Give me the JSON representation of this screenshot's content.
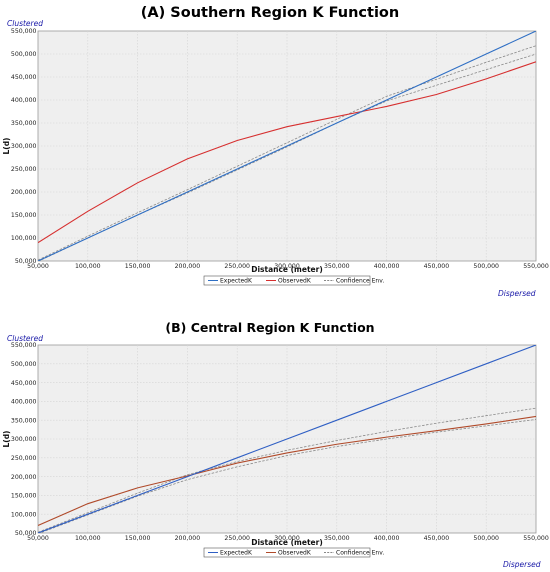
{
  "chart_data": [
    {
      "type": "line",
      "title": "(A) Southern Region K Function",
      "xlabel": "Distance (meter)",
      "ylabel": "L(d)",
      "top_label": "Clustered",
      "bottom_label": "Dispersed",
      "xlim": [
        50000,
        550000
      ],
      "ylim": [
        50000,
        550000
      ],
      "xticks": [
        50000,
        100000,
        150000,
        200000,
        250000,
        300000,
        350000,
        400000,
        450000,
        500000,
        550000
      ],
      "yticks": [
        50000,
        100000,
        150000,
        200000,
        250000,
        300000,
        350000,
        400000,
        450000,
        500000,
        550000
      ],
      "xtick_labels": [
        "50,000",
        "100,000",
        "150,000",
        "200,000",
        "250,000",
        "300,000",
        "350,000",
        "400,000",
        "450,000",
        "500,000",
        "550,000"
      ],
      "ytick_labels": [
        "50,000",
        "100,000",
        "150,000",
        "200,000",
        "250,000",
        "300,000",
        "350,000",
        "400,000",
        "450,000",
        "500,000",
        "550,000"
      ],
      "grid": true,
      "legend_position": "bottom-center",
      "series": [
        {
          "name": "ExpectedK",
          "color": "#2f6fc4",
          "dash": "solid",
          "x": [
            50000,
            100000,
            150000,
            200000,
            250000,
            300000,
            350000,
            400000,
            450000,
            500000,
            550000
          ],
          "y": [
            50000,
            100000,
            150000,
            200000,
            250000,
            300000,
            350000,
            400000,
            450000,
            500000,
            550000
          ]
        },
        {
          "name": "ObservedK",
          "color": "#d62f2f",
          "dash": "solid",
          "x": [
            50000,
            100000,
            150000,
            200000,
            250000,
            300000,
            350000,
            400000,
            450000,
            500000,
            550000
          ],
          "y": [
            90000,
            158000,
            220000,
            272000,
            312000,
            342000,
            364000,
            386000,
            412000,
            446000,
            483000
          ]
        },
        {
          "name": "Confidence Env.",
          "color": "#888888",
          "dash": "dashed",
          "x": [
            50000,
            100000,
            150000,
            200000,
            250000,
            300000,
            350000,
            400000,
            450000,
            500000,
            550000
          ],
          "y": [
            52000,
            104000,
            155000,
            205000,
            256000,
            307000,
            358000,
            408000,
            445000,
            482000,
            518000
          ]
        },
        {
          "name": "",
          "color": "#888888",
          "dash": "dashed",
          "x": [
            50000,
            100000,
            150000,
            200000,
            250000,
            300000,
            350000,
            400000,
            450000,
            500000,
            550000
          ],
          "y": [
            49000,
            100000,
            150000,
            198000,
            248000,
            298000,
            350000,
            398000,
            432000,
            466000,
            500000
          ]
        }
      ]
    },
    {
      "type": "line",
      "title": "(B) Central Region K Function",
      "xlabel": "Distance (meter)",
      "ylabel": "L(d)",
      "top_label": "Clustered",
      "bottom_label": "Dispersed",
      "xlim": [
        50000,
        550000
      ],
      "ylim": [
        50000,
        550000
      ],
      "xticks": [
        50000,
        100000,
        150000,
        200000,
        250000,
        300000,
        350000,
        400000,
        450000,
        500000,
        550000
      ],
      "yticks": [
        50000,
        100000,
        150000,
        200000,
        250000,
        300000,
        350000,
        400000,
        450000,
        500000,
        550000
      ],
      "xtick_labels": [
        "50,000",
        "100,000",
        "150,000",
        "200,000",
        "250,000",
        "300,000",
        "350,000",
        "400,000",
        "450,000",
        "500,000",
        "550,000"
      ],
      "ytick_labels": [
        "50,000",
        "100,000",
        "150,000",
        "200,000",
        "250,000",
        "300,000",
        "350,000",
        "400,000",
        "450,000",
        "500,000",
        "550,000"
      ],
      "grid": true,
      "legend_position": "bottom-center",
      "series": [
        {
          "name": "ExpectedK",
          "color": "#2f5fc4",
          "dash": "solid",
          "x": [
            50000,
            100000,
            150000,
            200000,
            250000,
            300000,
            350000,
            400000,
            450000,
            500000,
            550000
          ],
          "y": [
            50000,
            100000,
            150000,
            200000,
            250000,
            300000,
            350000,
            400000,
            450000,
            500000,
            550000
          ]
        },
        {
          "name": "ObservedK",
          "color": "#b04a2a",
          "dash": "solid",
          "x": [
            50000,
            100000,
            150000,
            200000,
            250000,
            300000,
            350000,
            400000,
            450000,
            500000,
            550000
          ],
          "y": [
            70000,
            128000,
            170000,
            202000,
            236000,
            263000,
            286000,
            305000,
            322000,
            340000,
            360000
          ]
        },
        {
          "name": "Confidence Env.",
          "color": "#888888",
          "dash": "dashed",
          "x": [
            50000,
            100000,
            150000,
            200000,
            250000,
            300000,
            350000,
            400000,
            450000,
            500000,
            550000
          ],
          "y": [
            52000,
            104000,
            156000,
            205000,
            240000,
            270000,
            296000,
            320000,
            342000,
            362000,
            382000
          ]
        },
        {
          "name": "",
          "color": "#888888",
          "dash": "dashed",
          "x": [
            50000,
            100000,
            150000,
            200000,
            250000,
            300000,
            350000,
            400000,
            450000,
            500000,
            550000
          ],
          "y": [
            48000,
            98000,
            148000,
            192000,
            226000,
            256000,
            280000,
            300000,
            318000,
            335000,
            352000
          ]
        }
      ]
    }
  ]
}
